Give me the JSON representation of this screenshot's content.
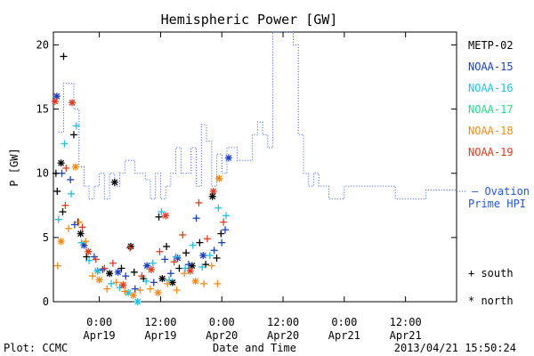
{
  "chart_data": {
    "type": "scatter",
    "title": "Hemispheric Power [GW]",
    "ylabel": "P [GW]",
    "xlabel": "Date and Time",
    "ylim": [
      0,
      21
    ],
    "xlim": [
      "2013-04-18T15:00",
      "2013-04-21T22:00"
    ],
    "yticks": [
      0,
      5,
      10,
      15,
      20
    ],
    "xticks": [
      {
        "t": "2013-04-19T00:00",
        "time": "0:00",
        "day": "Apr19"
      },
      {
        "t": "2013-04-19T12:00",
        "time": "12:00",
        "day": "Apr19"
      },
      {
        "t": "2013-04-20T00:00",
        "time": "0:00",
        "day": "Apr20"
      },
      {
        "t": "2013-04-20T12:00",
        "time": "12:00",
        "day": "Apr20"
      },
      {
        "t": "2013-04-21T00:00",
        "time": "0:00",
        "day": "Apr21"
      },
      {
        "t": "2013-04-21T12:00",
        "time": "12:00",
        "day": "Apr21"
      }
    ],
    "grid": false,
    "footer_left": "Plot: CCMC",
    "footer_right": "2013/04/21 15:50:24",
    "marker_legend": {
      "south": "+ south",
      "north": "* north"
    },
    "ovation": {
      "name": "Ovation Prime HPI",
      "label_line1": "— Ovation",
      "label_line2": "Prime HPI",
      "color": "#2255dd",
      "steps": [
        [
          "2013-04-18T16:00",
          13.2
        ],
        [
          "2013-04-18T17:00",
          17.0
        ],
        [
          "2013-04-18T19:00",
          15.0
        ],
        [
          "2013-04-18T20:00",
          10.5
        ],
        [
          "2013-04-18T21:00",
          9.0
        ],
        [
          "2013-04-18T22:00",
          8.0
        ],
        [
          "2013-04-18T23:00",
          9.0
        ],
        [
          "2013-04-19T00:00",
          10.0
        ],
        [
          "2013-04-19T01:00",
          8.0
        ],
        [
          "2013-04-19T02:00",
          10.0
        ],
        [
          "2013-04-19T03:00",
          9.0
        ],
        [
          "2013-04-19T04:00",
          10.0
        ],
        [
          "2013-04-19T05:00",
          11.0
        ],
        [
          "2013-04-19T07:00",
          10.0
        ],
        [
          "2013-04-19T09:00",
          9.5
        ],
        [
          "2013-04-19T10:00",
          8.0
        ],
        [
          "2013-04-19T11:00",
          10.0
        ],
        [
          "2013-04-19T12:00",
          8.0
        ],
        [
          "2013-04-19T13:00",
          9.0
        ],
        [
          "2013-04-19T14:00",
          10.0
        ],
        [
          "2013-04-19T15:00",
          12.0
        ],
        [
          "2013-04-19T16:00",
          10.0
        ],
        [
          "2013-04-19T18:00",
          12.0
        ],
        [
          "2013-04-19T19:00",
          9.0
        ],
        [
          "2013-04-19T20:00",
          13.8
        ],
        [
          "2013-04-19T21:00",
          12.5
        ],
        [
          "2013-04-19T22:00",
          9.0
        ],
        [
          "2013-04-19T23:00",
          11.5
        ],
        [
          "2013-04-20T00:00",
          10.0
        ],
        [
          "2013-04-20T01:00",
          12.0
        ],
        [
          "2013-04-20T03:00",
          11.0
        ],
        [
          "2013-04-20T06:00",
          13.0
        ],
        [
          "2013-04-20T07:00",
          14.0
        ],
        [
          "2013-04-20T08:00",
          13.0
        ],
        [
          "2013-04-20T09:00",
          12.0
        ],
        [
          "2013-04-20T10:00",
          21.0
        ],
        [
          "2013-04-20T14:00",
          20.0
        ],
        [
          "2013-04-20T15:00",
          13.0
        ],
        [
          "2013-04-20T16:00",
          10.0
        ],
        [
          "2013-04-20T17:00",
          9.0
        ],
        [
          "2013-04-20T18:00",
          10.0
        ],
        [
          "2013-04-20T19:00",
          9.0
        ],
        [
          "2013-04-20T21:00",
          8.0
        ],
        [
          "2013-04-21T00:00",
          9.0
        ],
        [
          "2013-04-21T10:00",
          8.0
        ],
        [
          "2013-04-21T16:00",
          8.7
        ]
      ]
    },
    "series": [
      {
        "name": "METP-02",
        "color": "#000000",
        "points": [
          [
            "2013-04-18T15:30",
            10.0,
            "s"
          ],
          [
            "2013-04-18T17:00",
            19.1,
            "s"
          ],
          [
            "2013-04-18T16:30",
            10.8,
            "n"
          ],
          [
            "2013-04-18T15:45",
            8.6,
            "s"
          ],
          [
            "2013-04-18T16:50",
            7.0,
            "s"
          ],
          [
            "2013-04-18T19:00",
            13.0,
            "s"
          ],
          [
            "2013-04-18T19:50",
            6.2,
            "s"
          ],
          [
            "2013-04-18T20:20",
            5.3,
            "n"
          ],
          [
            "2013-04-18T21:30",
            3.5,
            "s"
          ],
          [
            "2013-04-18T23:40",
            2.4,
            "s"
          ],
          [
            "2013-04-19T02:00",
            2.2,
            "n"
          ],
          [
            "2013-04-19T03:00",
            9.3,
            "n"
          ],
          [
            "2013-04-19T04:20",
            2.6,
            "s"
          ],
          [
            "2013-04-19T06:10",
            4.3,
            "n"
          ],
          [
            "2013-04-19T06:50",
            2.3,
            "s"
          ],
          [
            "2013-04-19T08:40",
            1.8,
            "s"
          ],
          [
            "2013-04-19T11:40",
            6.6,
            "s"
          ],
          [
            "2013-04-19T12:20",
            1.8,
            "n"
          ],
          [
            "2013-04-19T13:10",
            4.3,
            "s"
          ],
          [
            "2013-04-19T14:20",
            1.5,
            "n"
          ],
          [
            "2013-04-19T15:40",
            2.6,
            "s"
          ],
          [
            "2013-04-19T17:00",
            3.8,
            "s"
          ],
          [
            "2013-04-19T18:10",
            2.8,
            "n"
          ],
          [
            "2013-04-19T19:40",
            4.6,
            "s"
          ],
          [
            "2013-04-19T20:50",
            2.9,
            "s"
          ],
          [
            "2013-04-19T22:10",
            8.2,
            "n"
          ],
          [
            "2013-04-19T23:00",
            3.4,
            "s"
          ],
          [
            "2013-04-19T23:50",
            5.3,
            "s"
          ]
        ]
      },
      {
        "name": "NOAA-15",
        "color": "#1a3fbf",
        "points": [
          [
            "2013-04-18T15:40",
            16.0,
            "n"
          ],
          [
            "2013-04-18T16:40",
            10.0,
            "s"
          ],
          [
            "2013-04-18T18:20",
            9.5,
            "s"
          ],
          [
            "2013-04-18T19:10",
            6.0,
            "s"
          ],
          [
            "2013-04-18T21:00",
            4.4,
            "n"
          ],
          [
            "2013-04-18T23:00",
            3.5,
            "s"
          ],
          [
            "2013-04-19T00:40",
            2.5,
            "s"
          ],
          [
            "2013-04-19T03:40",
            2.3,
            "n"
          ],
          [
            "2013-04-19T05:10",
            2.0,
            "s"
          ],
          [
            "2013-04-19T07:00",
            1.0,
            "s"
          ],
          [
            "2013-04-19T09:20",
            2.8,
            "n"
          ],
          [
            "2013-04-19T10:40",
            1.5,
            "s"
          ],
          [
            "2013-04-19T12:50",
            3.3,
            "s"
          ],
          [
            "2013-04-19T14:00",
            2.2,
            "s"
          ],
          [
            "2013-04-19T15:20",
            3.4,
            "n"
          ],
          [
            "2013-04-19T17:30",
            2.9,
            "s"
          ],
          [
            "2013-04-19T19:00",
            6.5,
            "s"
          ],
          [
            "2013-04-19T20:20",
            3.6,
            "n"
          ],
          [
            "2013-04-19T22:30",
            4.0,
            "s"
          ],
          [
            "2013-04-20T00:00",
            4.6,
            "s"
          ],
          [
            "2013-04-20T01:20",
            11.2,
            "n"
          ],
          [
            "2013-04-20T00:40",
            5.6,
            "s"
          ]
        ]
      },
      {
        "name": "NOAA-16",
        "color": "#22c0e0",
        "points": [
          [
            "2013-04-18T16:00",
            6.4,
            "s"
          ],
          [
            "2013-04-18T17:10",
            12.3,
            "s"
          ],
          [
            "2013-04-18T18:30",
            8.4,
            "s"
          ],
          [
            "2013-04-18T19:30",
            13.7,
            "s"
          ],
          [
            "2013-04-18T20:30",
            4.6,
            "s"
          ],
          [
            "2013-04-18T22:00",
            3.2,
            "s"
          ],
          [
            "2013-04-18T23:40",
            2.4,
            "n"
          ],
          [
            "2013-04-19T02:20",
            1.4,
            "s"
          ],
          [
            "2013-04-19T04:00",
            1.1,
            "s"
          ],
          [
            "2013-04-19T05:40",
            0.7,
            "n"
          ],
          [
            "2013-04-19T07:30",
            0.0,
            "n"
          ],
          [
            "2013-04-19T09:10",
            1.6,
            "s"
          ],
          [
            "2013-04-19T10:30",
            3.0,
            "s"
          ],
          [
            "2013-04-19T12:10",
            7.0,
            "s"
          ],
          [
            "2013-04-19T13:40",
            1.7,
            "s"
          ],
          [
            "2013-04-19T15:00",
            3.5,
            "s"
          ],
          [
            "2013-04-19T16:50",
            2.6,
            "s"
          ],
          [
            "2013-04-19T18:20",
            4.4,
            "s"
          ],
          [
            "2013-04-19T20:10",
            2.7,
            "s"
          ],
          [
            "2013-04-19T21:40",
            3.6,
            "s"
          ],
          [
            "2013-04-19T23:20",
            7.3,
            "s"
          ],
          [
            "2013-04-20T00:50",
            6.7,
            "s"
          ]
        ]
      },
      {
        "name": "NOAA-17",
        "color": "#22dd88",
        "points": []
      },
      {
        "name": "NOAA-18",
        "color": "#f08a18",
        "points": [
          [
            "2013-04-18T15:50",
            2.8,
            "s"
          ],
          [
            "2013-04-18T16:30",
            4.7,
            "n"
          ],
          [
            "2013-04-18T18:00",
            5.7,
            "s"
          ],
          [
            "2013-04-18T19:20",
            10.5,
            "n"
          ],
          [
            "2013-04-18T20:00",
            6.2,
            "s"
          ],
          [
            "2013-04-18T21:20",
            4.7,
            "s"
          ],
          [
            "2013-04-18T22:40",
            2.0,
            "s"
          ],
          [
            "2013-04-19T00:00",
            1.7,
            "n"
          ],
          [
            "2013-04-19T01:30",
            1.0,
            "s"
          ],
          [
            "2013-04-19T03:20",
            1.5,
            "s"
          ],
          [
            "2013-04-19T05:00",
            0.8,
            "s"
          ],
          [
            "2013-04-19T06:40",
            0.5,
            "n"
          ],
          [
            "2013-04-19T08:00",
            0.9,
            "s"
          ],
          [
            "2013-04-19T10:00",
            1.0,
            "s"
          ],
          [
            "2013-04-19T11:30",
            0.7,
            "n"
          ],
          [
            "2013-04-19T13:20",
            1.4,
            "s"
          ],
          [
            "2013-04-19T15:10",
            0.9,
            "s"
          ],
          [
            "2013-04-19T16:40",
            2.2,
            "s"
          ],
          [
            "2013-04-19T18:50",
            1.6,
            "n"
          ],
          [
            "2013-04-19T20:30",
            1.4,
            "s"
          ],
          [
            "2013-04-19T22:00",
            2.8,
            "s"
          ],
          [
            "2013-04-19T23:30",
            9.6,
            "n"
          ],
          [
            "2013-04-19T23:10",
            1.4,
            "s"
          ]
        ]
      },
      {
        "name": "NOAA-19",
        "color": "#e03a1e",
        "points": [
          [
            "2013-04-18T15:20",
            15.6,
            "n"
          ],
          [
            "2013-04-18T17:30",
            10.4,
            "s"
          ],
          [
            "2013-04-18T18:40",
            15.5,
            "n"
          ],
          [
            "2013-04-18T17:20",
            7.5,
            "s"
          ],
          [
            "2013-04-18T20:40",
            5.8,
            "s"
          ],
          [
            "2013-04-18T21:50",
            3.9,
            "n"
          ],
          [
            "2013-04-18T23:20",
            3.3,
            "s"
          ],
          [
            "2013-04-19T01:00",
            2.6,
            "s"
          ],
          [
            "2013-04-19T02:40",
            3.0,
            "s"
          ],
          [
            "2013-04-19T04:40",
            1.3,
            "n"
          ],
          [
            "2013-04-19T06:00",
            4.2,
            "s"
          ],
          [
            "2013-04-19T08:20",
            2.0,
            "s"
          ],
          [
            "2013-04-19T10:10",
            2.5,
            "n"
          ],
          [
            "2013-04-19T11:50",
            3.9,
            "s"
          ],
          [
            "2013-04-19T13:00",
            6.7,
            "n"
          ],
          [
            "2013-04-19T14:40",
            3.1,
            "s"
          ],
          [
            "2013-04-19T16:20",
            5.2,
            "s"
          ],
          [
            "2013-04-19T17:50",
            2.4,
            "n"
          ],
          [
            "2013-04-19T19:30",
            7.7,
            "s"
          ],
          [
            "2013-04-19T21:10",
            4.9,
            "s"
          ],
          [
            "2013-04-19T22:20",
            8.6,
            "n"
          ],
          [
            "2013-04-20T00:20",
            6.2,
            "s"
          ]
        ]
      }
    ]
  }
}
